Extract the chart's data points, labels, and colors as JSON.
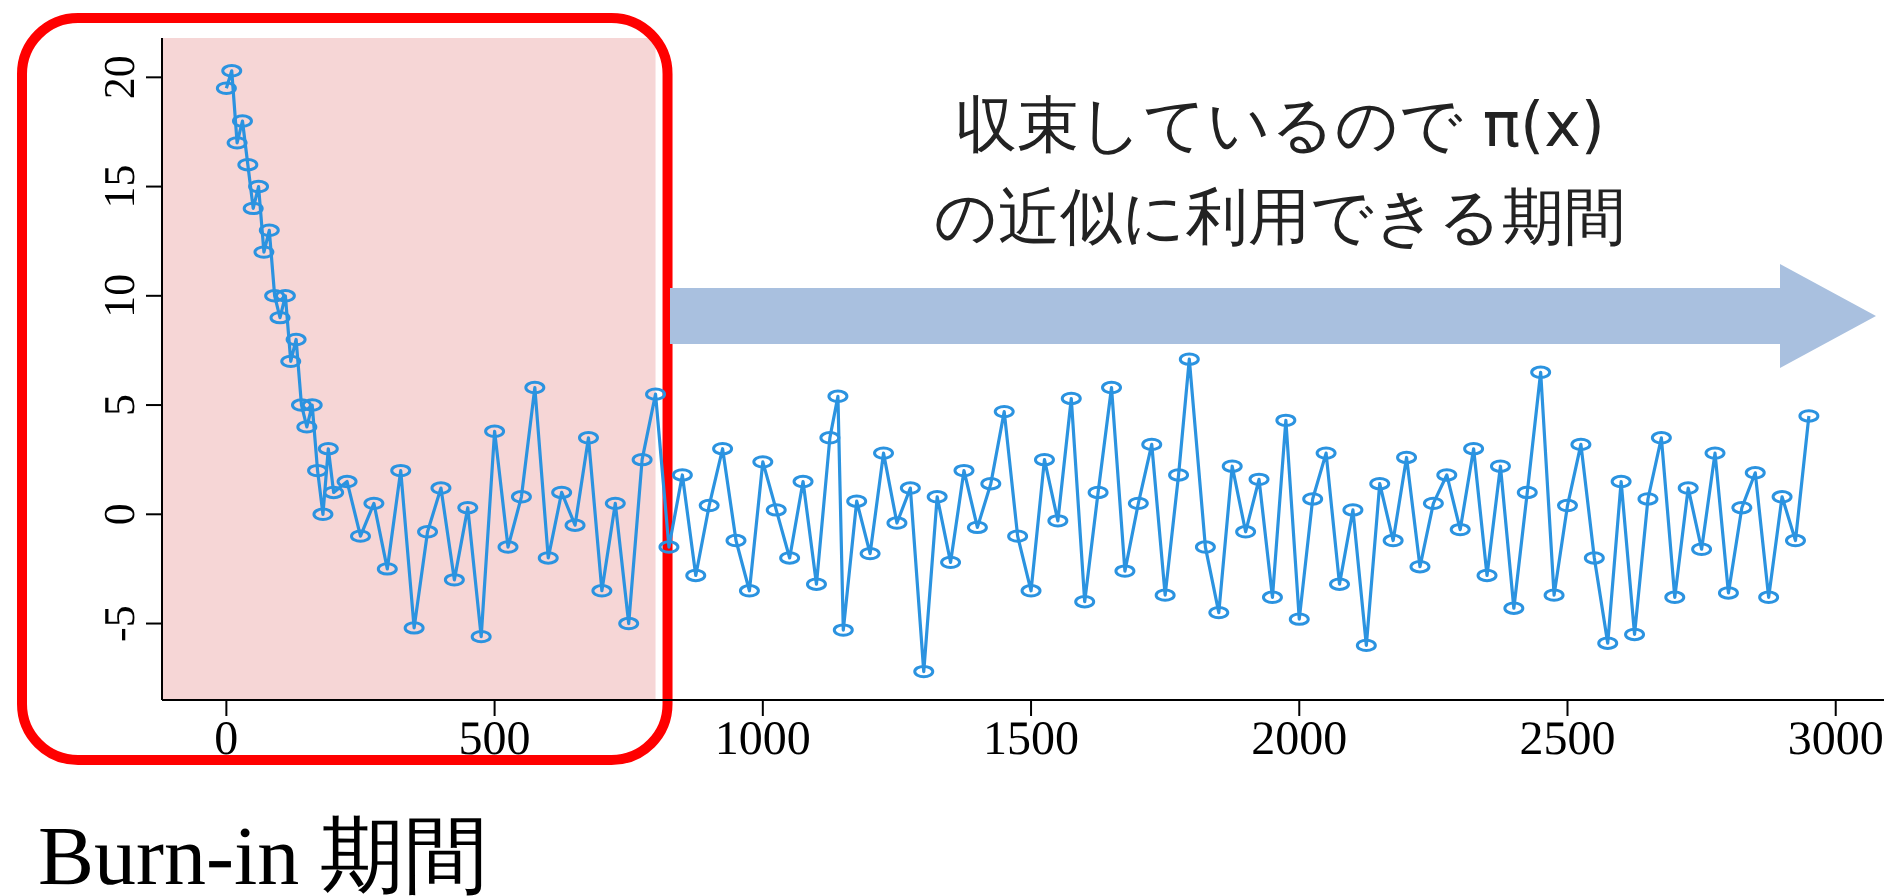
{
  "chart_data": {
    "type": "line",
    "marker": "circle",
    "grid": false,
    "annotations": [
      "収束しているので π(x)\nの近似に利用できる期間"
    ],
    "bands": [
      {
        "axis": "x",
        "from": -120,
        "to": 800,
        "label": "Burn-in 期間",
        "color": "#f6d6d6"
      }
    ],
    "xlim": [
      -120,
      3090
    ],
    "xticks": [
      0,
      500,
      1000,
      1500,
      2000,
      2500,
      3000
    ],
    "ylim": [
      -8.5,
      21.8
    ],
    "yticks": [
      -5,
      0,
      5,
      10,
      15,
      20
    ],
    "x": [
      0,
      10,
      20,
      30,
      40,
      50,
      60,
      70,
      80,
      90,
      100,
      110,
      120,
      130,
      140,
      150,
      160,
      170,
      180,
      190,
      200,
      225,
      250,
      275,
      300,
      325,
      350,
      375,
      400,
      425,
      450,
      475,
      500,
      525,
      550,
      575,
      600,
      625,
      650,
      675,
      700,
      725,
      750,
      775,
      800,
      825,
      850,
      875,
      900,
      925,
      950,
      975,
      1000,
      1025,
      1050,
      1075,
      1100,
      1125,
      1140,
      1150,
      1175,
      1200,
      1225,
      1250,
      1275,
      1300,
      1325,
      1350,
      1375,
      1400,
      1425,
      1450,
      1475,
      1500,
      1525,
      1550,
      1575,
      1600,
      1625,
      1650,
      1675,
      1700,
      1725,
      1750,
      1775,
      1795,
      1825,
      1850,
      1875,
      1900,
      1925,
      1950,
      1975,
      2000,
      2025,
      2050,
      2075,
      2100,
      2125,
      2150,
      2175,
      2200,
      2225,
      2250,
      2275,
      2300,
      2325,
      2350,
      2375,
      2400,
      2425,
      2450,
      2475,
      2500,
      2525,
      2550,
      2575,
      2600,
      2625,
      2650,
      2675,
      2700,
      2725,
      2750,
      2775,
      2800,
      2825,
      2850,
      2875,
      2900,
      2925,
      2950
    ],
    "series": [
      {
        "color": "#2b93e0",
        "values": [
          19.5,
          20.3,
          17,
          18,
          16,
          14,
          15,
          12,
          13,
          10,
          9,
          10,
          7,
          8,
          5,
          4,
          5,
          2,
          0,
          3,
          1,
          1.5,
          -1,
          0.5,
          -2.5,
          2,
          -5.2,
          -0.8,
          1.2,
          -3,
          0.3,
          -5.6,
          3.8,
          -1.5,
          0.8,
          5.8,
          -2,
          1,
          -0.5,
          3.5,
          -3.5,
          0.5,
          -5,
          2.5,
          5.5,
          -1.5,
          1.8,
          -2.8,
          0.4,
          3,
          -1.2,
          -3.5,
          2.4,
          0.2,
          -2,
          1.5,
          -3.2,
          3.5,
          5.4,
          -5.3,
          0.6,
          -1.8,
          2.8,
          -0.4,
          1.2,
          -7.2,
          0.8,
          -2.2,
          2,
          -0.6,
          1.4,
          4.7,
          -1,
          -3.5,
          2.5,
          -0.3,
          5.3,
          -4,
          1,
          5.8,
          -2.6,
          0.5,
          3.2,
          -3.7,
          1.8,
          7.1,
          -1.5,
          -4.5,
          2.2,
          -0.8,
          1.6,
          -3.8,
          4.3,
          -4.8,
          0.7,
          2.8,
          -3.2,
          0.2,
          -6,
          1.4,
          -1.2,
          2.6,
          -2.4,
          0.5,
          1.8,
          -0.7,
          3,
          -2.8,
          2.2,
          -4.3,
          1,
          6.5,
          -3.7,
          0.4,
          3.2,
          -2,
          -5.9,
          1.5,
          -5.5,
          0.7,
          3.5,
          -3.8,
          1.2,
          -1.6,
          2.8,
          -3.6,
          0.3,
          1.9,
          -3.8,
          0.8,
          -1.2,
          4.5
        ]
      }
    ]
  }
}
